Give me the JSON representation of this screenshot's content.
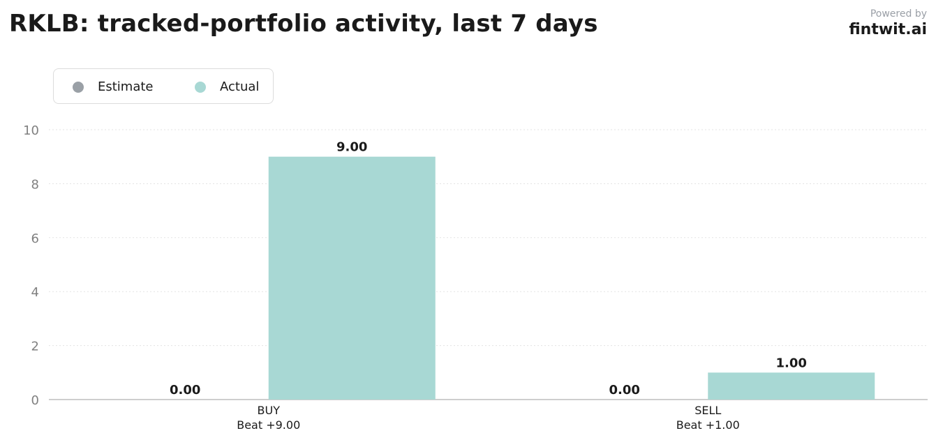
{
  "header": {
    "title": "RKLB: tracked-portfolio activity, last 7 days",
    "powered_by": "Powered by",
    "brand": "fintwit.ai"
  },
  "chart_data": {
    "type": "bar",
    "title": "RKLB: tracked-portfolio activity, last 7 days",
    "xlabel": "",
    "ylabel": "",
    "categories": [
      "BUY",
      "SELL"
    ],
    "category_sublabels": [
      "Beat +9.00",
      "Beat +1.00"
    ],
    "series": [
      {
        "name": "Estimate",
        "color": "#9aa0a6",
        "values": [
          0.0,
          0.0
        ],
        "labels": [
          "0.00",
          "0.00"
        ]
      },
      {
        "name": "Actual",
        "color": "#a8d8d4",
        "values": [
          9.0,
          1.0
        ],
        "labels": [
          "9.00",
          "1.00"
        ]
      }
    ],
    "ylim": [
      0,
      10
    ],
    "yticks": [
      0,
      2,
      4,
      6,
      8,
      10
    ],
    "grid": true,
    "legend_position": "top-left"
  },
  "colors": {
    "estimate": "#9aa0a6",
    "actual": "#a8d8d4",
    "grid": "#e3e3e3",
    "axis": "#bdbdbd"
  }
}
